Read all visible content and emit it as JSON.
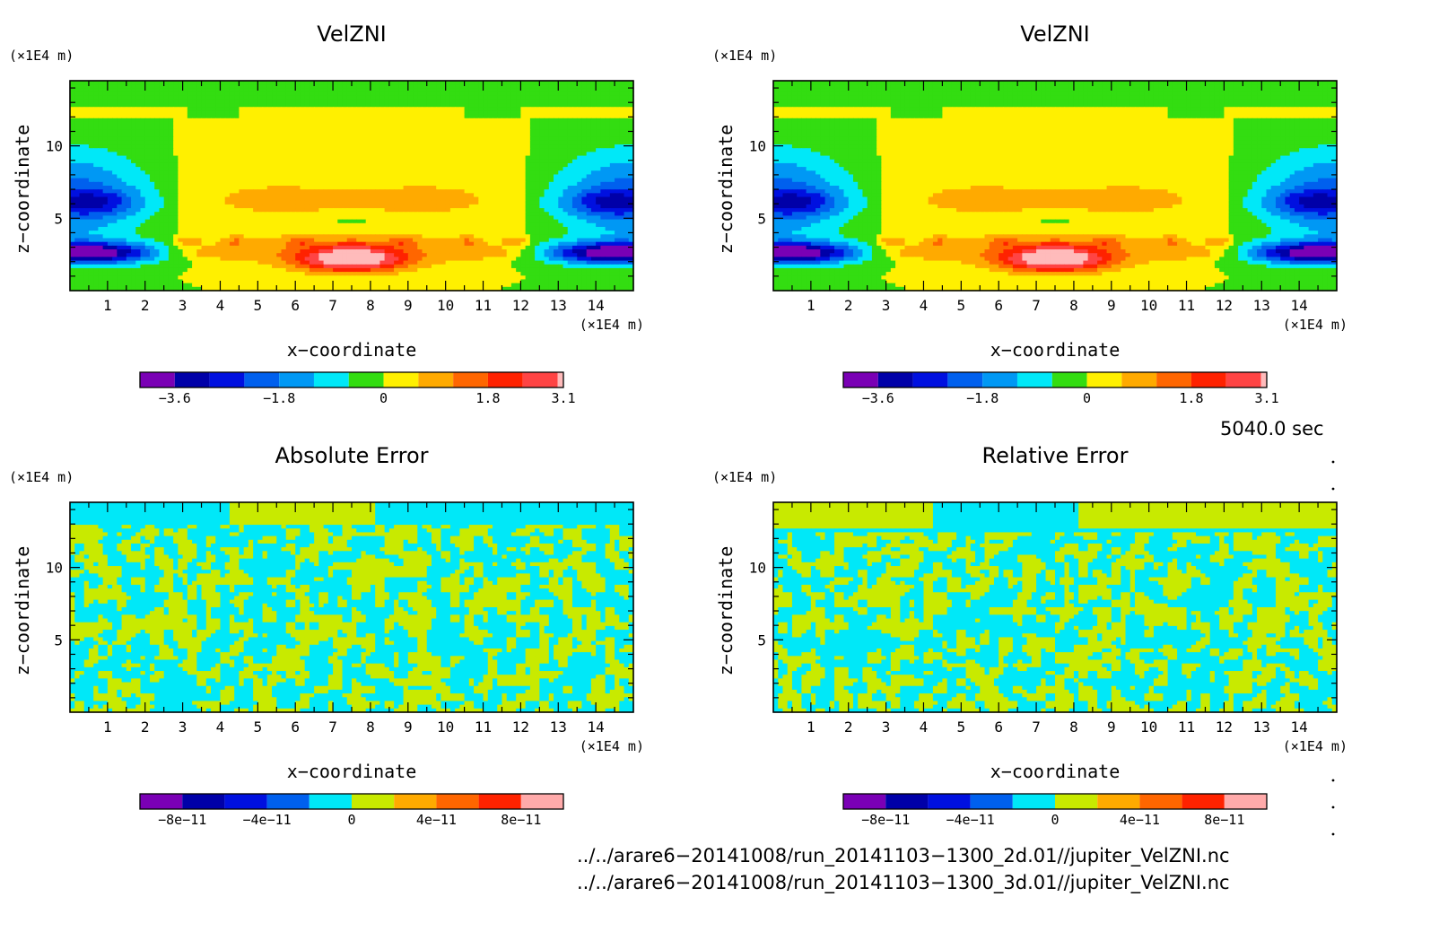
{
  "panels": [
    {
      "title": "VelZNI",
      "x_unit_label": "(×1E4 m)",
      "z_unit_label": "(×1E4 m)",
      "xlabel": "x−coordinate",
      "ylabel": "z−coordinate",
      "x_ticks": [
        1,
        2,
        3,
        4,
        5,
        6,
        7,
        8,
        9,
        10,
        11,
        12,
        13,
        14
      ],
      "z_ticks": [
        5,
        10
      ],
      "colorbar": {
        "colors": [
          "#7a00b5",
          "#0000a8",
          "#0010e0",
          "#0060ee",
          "#0098f4",
          "#00e8f8",
          "#33dd11",
          "#fff000",
          "#ffaa00",
          "#ff6600",
          "#ff2200",
          "#ff4444",
          "#ffbbbb"
        ],
        "bounds": [
          -4.2,
          -3.6,
          -3.0,
          -2.4,
          -1.8,
          -1.2,
          -0.6,
          0,
          0.6,
          1.2,
          1.8,
          2.4,
          3.0,
          3.1
        ],
        "tick_labels": [
          "−3.6",
          "−1.8",
          "0",
          "1.8",
          "3.1"
        ],
        "tick_values": [
          -3.6,
          -1.8,
          0,
          1.8,
          3.1
        ]
      }
    },
    {
      "title": "VelZNI",
      "x_unit_label": "(×1E4 m)",
      "z_unit_label": "(×1E4 m)",
      "xlabel": "x−coordinate",
      "ylabel": "z−coordinate",
      "x_ticks": [
        1,
        2,
        3,
        4,
        5,
        6,
        7,
        8,
        9,
        10,
        11,
        12,
        13,
        14
      ],
      "z_ticks": [
        5,
        10
      ],
      "colorbar": {
        "colors": [
          "#7a00b5",
          "#0000a8",
          "#0010e0",
          "#0060ee",
          "#0098f4",
          "#00e8f8",
          "#33dd11",
          "#fff000",
          "#ffaa00",
          "#ff6600",
          "#ff2200",
          "#ff4444",
          "#ffbbbb"
        ],
        "bounds": [
          -4.2,
          -3.6,
          -3.0,
          -2.4,
          -1.8,
          -1.2,
          -0.6,
          0,
          0.6,
          1.2,
          1.8,
          2.4,
          3.0,
          3.1
        ],
        "tick_labels": [
          "−3.6",
          "−1.8",
          "0",
          "1.8",
          "3.1"
        ],
        "tick_values": [
          -3.6,
          -1.8,
          0,
          1.8,
          3.1
        ]
      }
    },
    {
      "title": "Absolute Error",
      "x_unit_label": "(×1E4 m)",
      "z_unit_label": "(×1E4 m)",
      "xlabel": "x−coordinate",
      "ylabel": "z−coordinate",
      "x_ticks": [
        1,
        2,
        3,
        4,
        5,
        6,
        7,
        8,
        9,
        10,
        11,
        12,
        13,
        14
      ],
      "z_ticks": [
        5,
        10
      ],
      "colorbar": {
        "colors": [
          "#7a00b5",
          "#0000a8",
          "#0010e0",
          "#0060ee",
          "#00e8f8",
          "#c8ea00",
          "#ffaa00",
          "#ff6600",
          "#ff2200",
          "#ffaaaa"
        ],
        "bounds": [
          -1e-10,
          -8e-11,
          -6e-11,
          -4e-11,
          -2e-11,
          0,
          2e-11,
          4e-11,
          6e-11,
          8e-11,
          1e-10
        ],
        "tick_labels": [
          "−8e−11",
          "−4e−11",
          "0",
          "4e−11",
          "8e−11"
        ],
        "tick_values": [
          -8e-11,
          -4e-11,
          0,
          4e-11,
          8e-11
        ]
      }
    },
    {
      "title": "Relative Error",
      "x_unit_label": "(×1E4 m)",
      "z_unit_label": "(×1E4 m)",
      "xlabel": "x−coordinate",
      "ylabel": "z−coordinate",
      "x_ticks": [
        1,
        2,
        3,
        4,
        5,
        6,
        7,
        8,
        9,
        10,
        11,
        12,
        13,
        14
      ],
      "z_ticks": [
        5,
        10
      ],
      "colorbar": {
        "colors": [
          "#7a00b5",
          "#0000a8",
          "#0010e0",
          "#0060ee",
          "#00e8f8",
          "#c8ea00",
          "#ffaa00",
          "#ff6600",
          "#ff2200",
          "#ffaaaa"
        ],
        "bounds": [
          -1e-10,
          -8e-11,
          -6e-11,
          -4e-11,
          -2e-11,
          0,
          2e-11,
          4e-11,
          6e-11,
          8e-11,
          1e-10
        ],
        "tick_labels": [
          "−8e−11",
          "−4e−11",
          "0",
          "4e−11",
          "8e−11"
        ],
        "tick_values": [
          -8e-11,
          -4e-11,
          0,
          4e-11,
          8e-11
        ]
      }
    }
  ],
  "time_label": "5040.0 sec",
  "file_lines": [
    "../../arare6−20141008/run_20141103−1300_2d.01//jupiter_VelZNI.nc",
    "../../arare6−20141008/run_20141103−1300_3d.01//jupiter_VelZNI.nc"
  ],
  "chart_data": [
    {
      "type": "heatmap",
      "title": "VelZNI",
      "xlabel": "x−coordinate",
      "ylabel": "z−coordinate",
      "xlim": [
        0,
        15
      ],
      "ylim": [
        0,
        14.5
      ],
      "colorbar_range": [
        -4.2,
        3.1
      ]
    },
    {
      "type": "heatmap",
      "title": "VelZNI",
      "xlabel": "x−coordinate",
      "ylabel": "z−coordinate",
      "xlim": [
        0,
        15
      ],
      "ylim": [
        0,
        14.5
      ],
      "colorbar_range": [
        -4.2,
        3.1
      ]
    },
    {
      "type": "heatmap",
      "title": "Absolute Error",
      "xlabel": "x−coordinate",
      "ylabel": "z−coordinate",
      "xlim": [
        0,
        15
      ],
      "ylim": [
        0,
        14.5
      ],
      "colorbar_range": [
        -1e-10,
        1e-10
      ]
    },
    {
      "type": "heatmap",
      "title": "Relative Error",
      "xlabel": "x−coordinate",
      "ylabel": "z−coordinate",
      "xlim": [
        0,
        15
      ],
      "ylim": [
        0,
        14.5
      ],
      "colorbar_range": [
        -1e-10,
        1e-10
      ]
    }
  ]
}
